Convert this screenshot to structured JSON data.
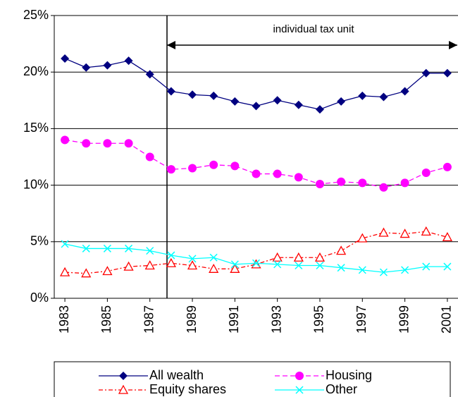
{
  "chart_data": {
    "type": "line",
    "x": [
      1983,
      1984,
      1985,
      1986,
      1987,
      1988,
      1989,
      1990,
      1991,
      1992,
      1993,
      1994,
      1995,
      1996,
      1997,
      1998,
      1999,
      2000,
      2001
    ],
    "xlim": [
      1982.5,
      2001.5
    ],
    "xticks": [
      1983,
      1985,
      1987,
      1989,
      1991,
      1993,
      1995,
      1997,
      1999,
      2001
    ],
    "ylim": [
      0,
      25
    ],
    "yticks": [
      {
        "value": 0,
        "label": "0%"
      },
      {
        "value": 5,
        "label": "5%"
      },
      {
        "value": 10,
        "label": "10%"
      },
      {
        "value": 15,
        "label": "15%"
      },
      {
        "value": 20,
        "label": "20%"
      },
      {
        "value": 25,
        "label": "25%"
      }
    ],
    "grid": true,
    "annotation": "individual tax unit",
    "series": [
      {
        "name": "All wealth",
        "color": "#000080",
        "marker": "diamond",
        "dash": "solid",
        "values": [
          21.2,
          20.4,
          20.6,
          21.0,
          19.8,
          18.3,
          18.0,
          17.9,
          17.4,
          17.0,
          17.5,
          17.1,
          16.7,
          17.4,
          17.9,
          17.8,
          18.3,
          19.9,
          19.9
        ]
      },
      {
        "name": "Housing",
        "color": "#ff00ff",
        "marker": "circle",
        "dash": "dashed",
        "values": [
          14.0,
          13.7,
          13.7,
          13.7,
          12.5,
          11.4,
          11.5,
          11.8,
          11.7,
          11.0,
          11.0,
          10.7,
          10.1,
          10.3,
          10.2,
          9.8,
          10.2,
          11.1,
          11.6
        ]
      },
      {
        "name": "Equity shares",
        "color": "#ff0000",
        "marker": "triangle",
        "dash": "dashdot",
        "values": [
          2.3,
          2.2,
          2.4,
          2.8,
          2.9,
          3.1,
          2.9,
          2.6,
          2.6,
          3.0,
          3.6,
          3.6,
          3.6,
          4.2,
          5.3,
          5.8,
          5.7,
          5.9,
          5.4
        ]
      },
      {
        "name": "Other",
        "color": "#00ffff",
        "marker": "x",
        "dash": "solid",
        "values": [
          4.8,
          4.4,
          4.4,
          4.4,
          4.2,
          3.8,
          3.5,
          3.6,
          3.0,
          3.1,
          3.0,
          2.9,
          2.9,
          2.7,
          2.5,
          2.3,
          2.5,
          2.8,
          2.8
        ]
      }
    ]
  }
}
